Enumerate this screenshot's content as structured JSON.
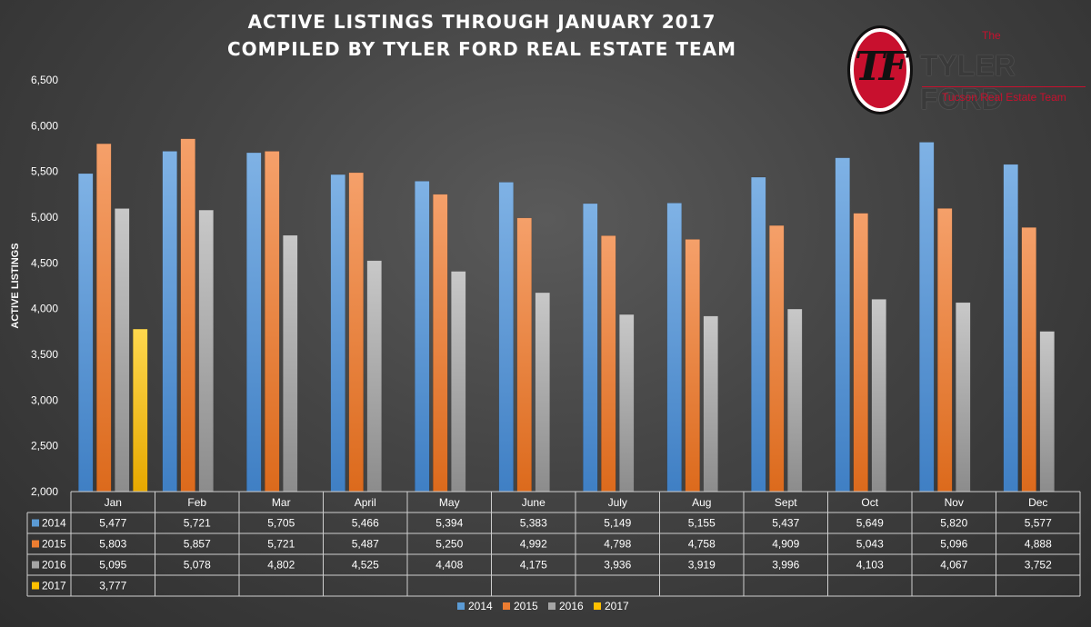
{
  "title": {
    "line1": "ACTIVE LISTINGS THROUGH JANUARY 2017",
    "line2": "COMPILED BY TYLER FORD REAL ESTATE TEAM"
  },
  "logo": {
    "monogram": "TF",
    "the": "The",
    "name": "TYLER FORD",
    "subtitle": "Tucson Real Estate Team"
  },
  "chart_data": {
    "type": "bar",
    "ylabel": "ACTIVE LISTINGS",
    "xlabel": "",
    "ylim": [
      2000,
      6500
    ],
    "yticks": [
      2000,
      2500,
      3000,
      3500,
      4000,
      4500,
      5000,
      5500,
      6000,
      6500
    ],
    "ytick_labels": [
      "2,000",
      "2,500",
      "3,000",
      "3,500",
      "4,000",
      "4,500",
      "5,000",
      "5,500",
      "6,000",
      "6,500"
    ],
    "grid": false,
    "legend_position": "bottom",
    "data_table": true,
    "categories": [
      "Jan",
      "Feb",
      "Mar",
      "April",
      "May",
      "June",
      "July",
      "Aug",
      "Sept",
      "Oct",
      "Nov",
      "Dec"
    ],
    "series": [
      {
        "name": "2014",
        "color": "#5b9bd5",
        "values": [
          5477,
          5721,
          5705,
          5466,
          5394,
          5383,
          5149,
          5155,
          5437,
          5649,
          5820,
          5577
        ],
        "labels": [
          "5,477",
          "5,721",
          "5,705",
          "5,466",
          "5,394",
          "5,383",
          "5,149",
          "5,155",
          "5,437",
          "5,649",
          "5,820",
          "5,577"
        ]
      },
      {
        "name": "2015",
        "color": "#ed7d31",
        "values": [
          5803,
          5857,
          5721,
          5487,
          5250,
          4992,
          4798,
          4758,
          4909,
          5043,
          5096,
          4888
        ],
        "labels": [
          "5,803",
          "5,857",
          "5,721",
          "5,487",
          "5,250",
          "4,992",
          "4,798",
          "4,758",
          "4,909",
          "5,043",
          "5,096",
          "4,888"
        ]
      },
      {
        "name": "2016",
        "color": "#a5a5a5",
        "values": [
          5095,
          5078,
          4802,
          4525,
          4408,
          4175,
          3936,
          3919,
          3996,
          4103,
          4067,
          3752
        ],
        "labels": [
          "5,095",
          "5,078",
          "4,802",
          "4,525",
          "4,408",
          "4,175",
          "3,936",
          "3,919",
          "3,996",
          "4,103",
          "4,067",
          "3,752"
        ]
      },
      {
        "name": "2017",
        "color": "#ffc000",
        "values": [
          3777,
          null,
          null,
          null,
          null,
          null,
          null,
          null,
          null,
          null,
          null,
          null
        ],
        "labels": [
          "3,777",
          "",
          "",
          "",
          "",
          "",
          "",
          "",
          "",
          "",
          "",
          ""
        ]
      }
    ]
  }
}
